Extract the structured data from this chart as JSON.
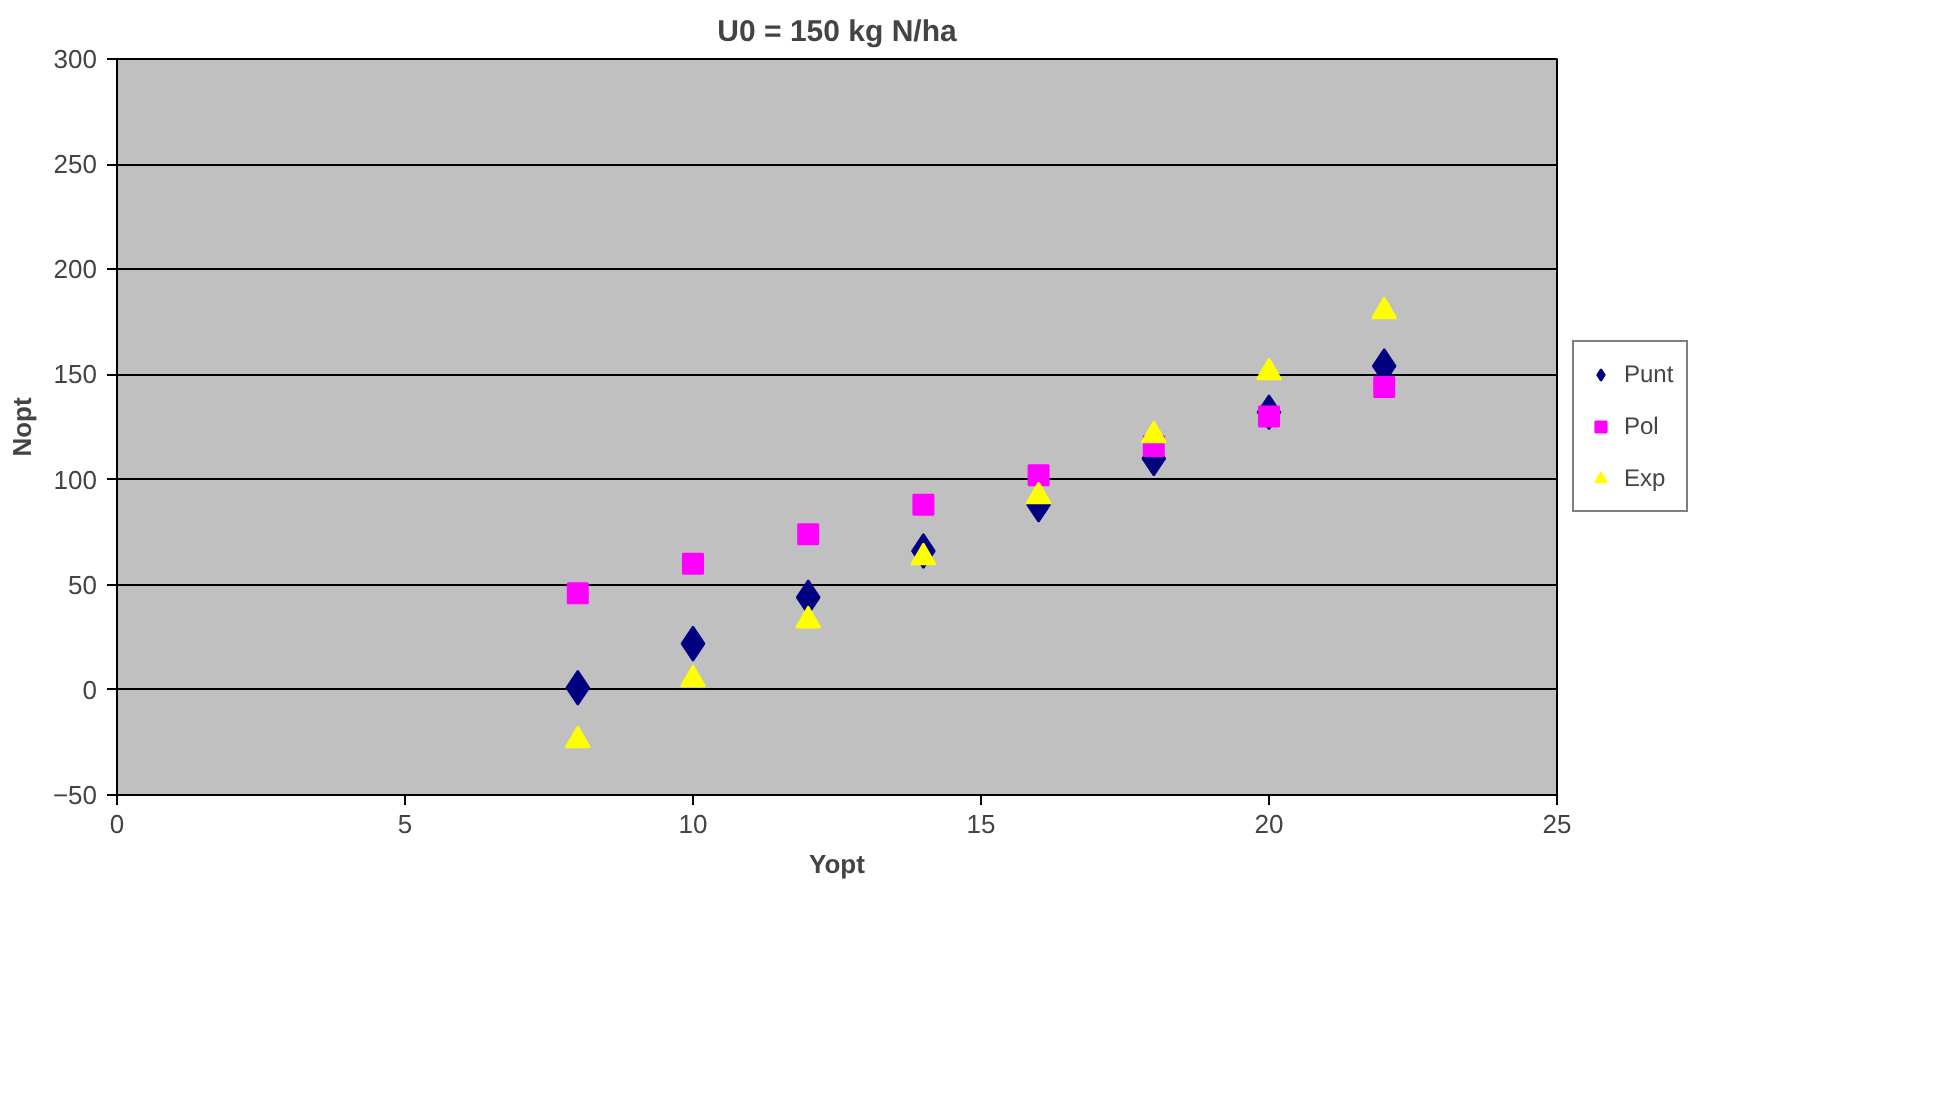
{
  "chart_data": {
    "type": "scatter",
    "title": "U0 = 150 kg N/ha",
    "xlabel": "Yopt",
    "ylabel": "Nopt",
    "x": [
      8,
      10,
      12,
      14,
      16,
      18,
      20,
      22
    ],
    "series": [
      {
        "name": "Punt",
        "color": "#000080",
        "marker": "diamond",
        "values": [
          1,
          22,
          44,
          66,
          88,
          110,
          132,
          154
        ]
      },
      {
        "name": "Pol",
        "color": "#ff00ff",
        "marker": "square",
        "values": [
          46,
          60,
          74,
          88,
          102,
          116,
          130,
          144
        ]
      },
      {
        "name": "Exp",
        "color": "#ffff00",
        "marker": "triangle",
        "values": [
          -24,
          5,
          33,
          63,
          92,
          121,
          151,
          180
        ]
      }
    ],
    "xlim": [
      0,
      25
    ],
    "xticks": [
      0,
      5,
      10,
      15,
      20,
      25
    ],
    "ylim": [
      -50,
      300
    ],
    "yticks": [
      -50,
      0,
      50,
      100,
      150,
      200,
      250,
      300
    ],
    "grid": "y",
    "legend": "right"
  }
}
